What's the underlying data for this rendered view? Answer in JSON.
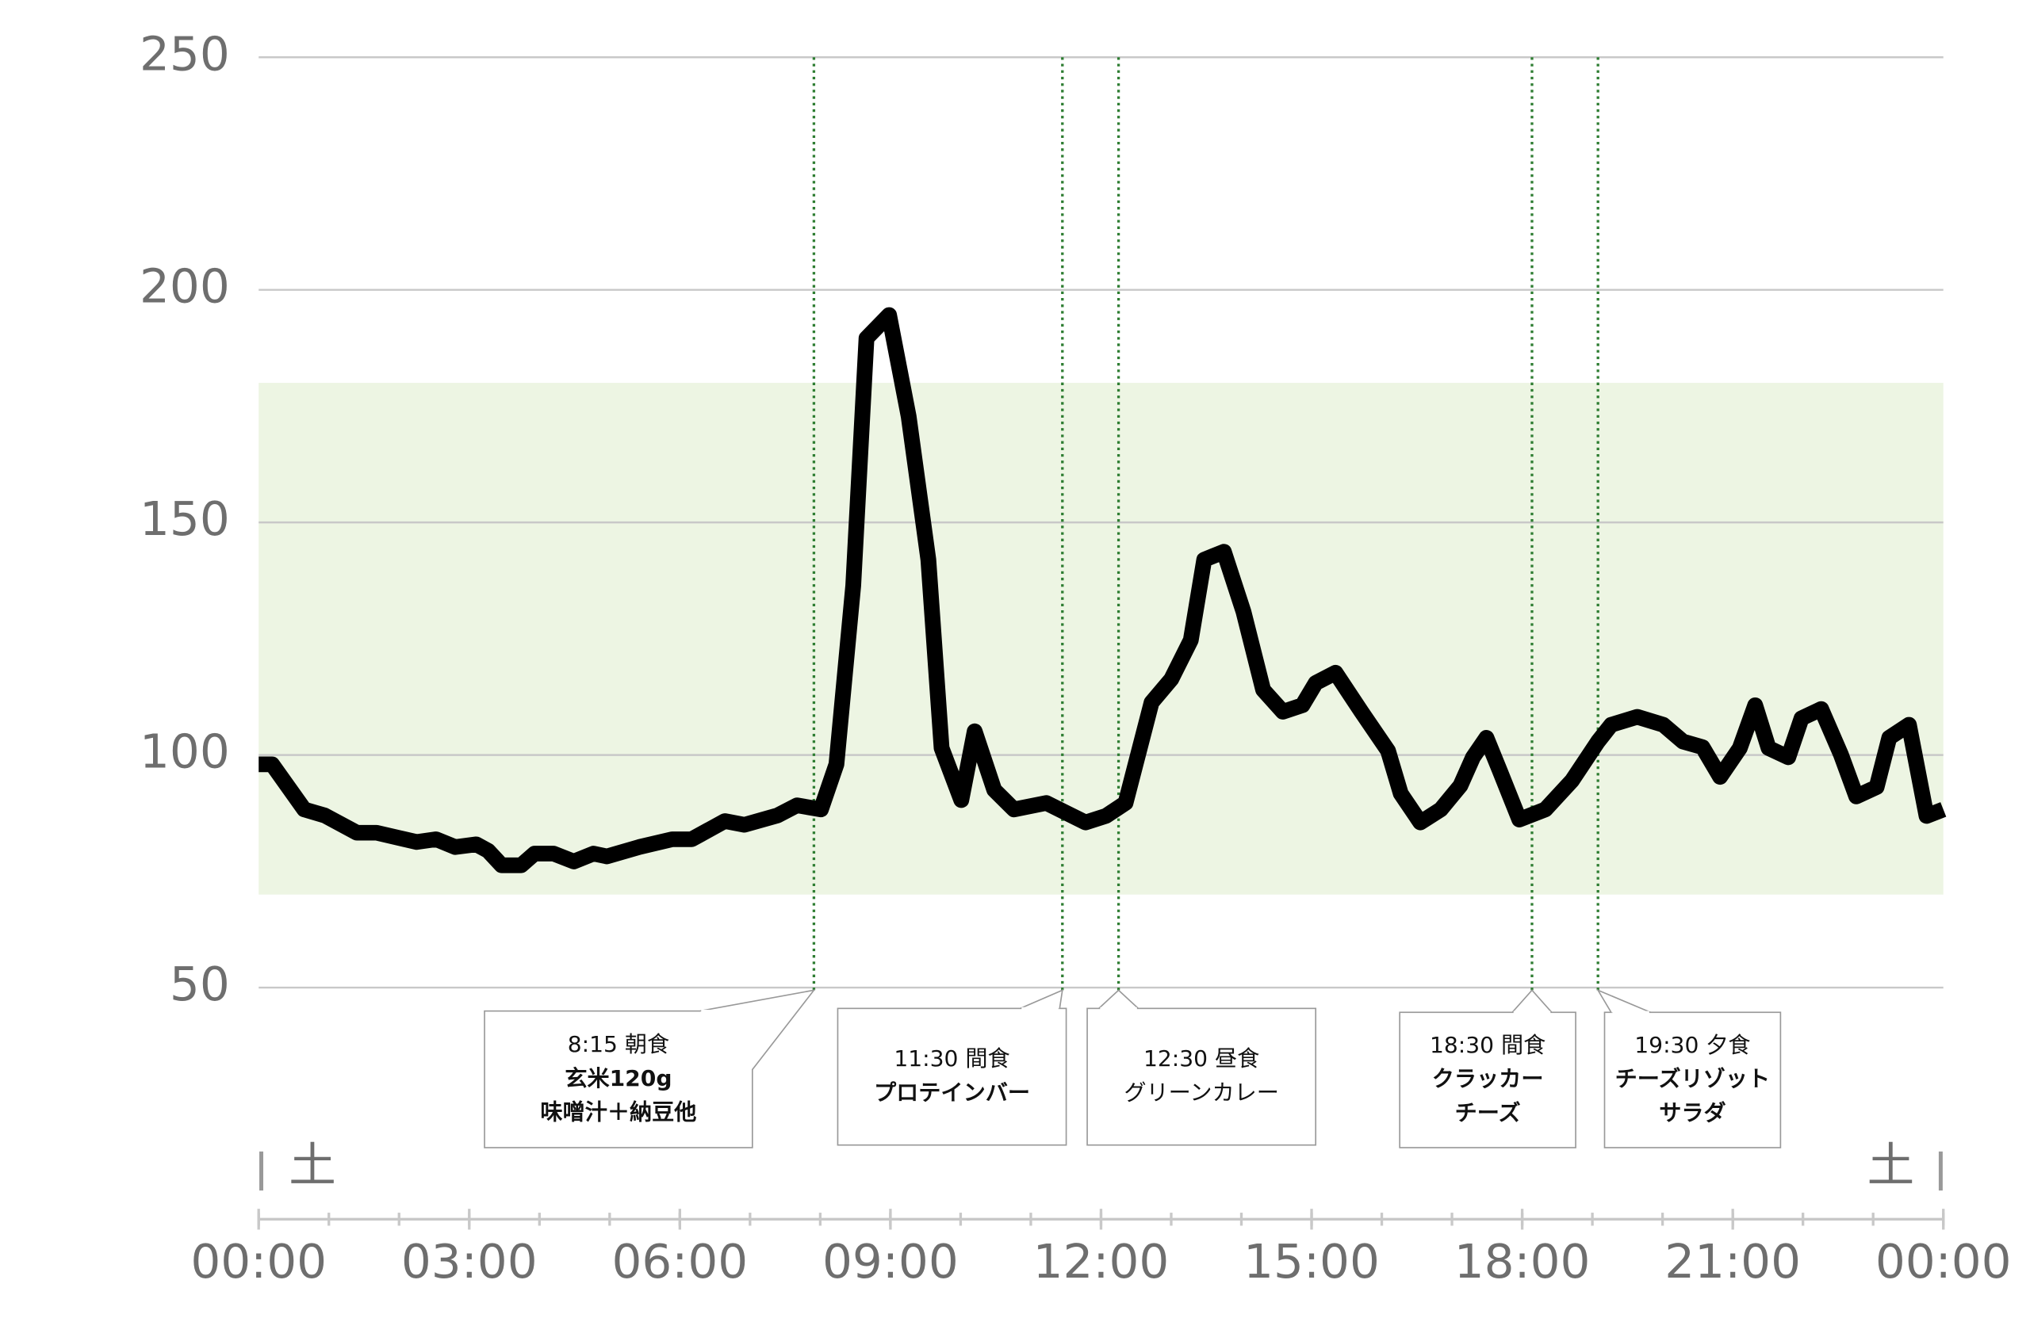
{
  "chart_data": {
    "type": "line",
    "x": [
      0,
      0.19,
      0.65,
      0.94,
      1.4,
      1.68,
      2.25,
      2.53,
      2.8,
      3.1,
      3.27,
      3.46,
      3.74,
      3.93,
      4.2,
      4.49,
      4.77,
      4.96,
      5.42,
      5.89,
      6.17,
      6.64,
      6.92,
      7.39,
      7.67,
      8.01,
      8.23,
      8.47,
      8.66,
      8.98,
      9.26,
      9.54,
      9.73,
      10.01,
      10.2,
      10.48,
      10.76,
      11.22,
      11.78,
      12.07,
      12.35,
      12.72,
      13,
      13.28,
      13.47,
      13.75,
      14.03,
      14.31,
      14.59,
      14.87,
      15.06,
      15.34,
      15.71,
      16.09,
      16.27,
      16.55,
      16.84,
      17.12,
      17.3,
      17.49,
      17.68,
      17.96,
      18.33,
      18.71,
      19.08,
      19.27,
      19.64,
      20.01,
      20.29,
      20.57,
      20.82,
      21.1,
      21.32,
      21.51,
      21.79,
      21.98,
      22.26,
      22.54,
      22.76,
      23.05,
      23.23,
      23.51,
      23.76,
      24
    ],
    "values": [
      98,
      98,
      88.3,
      87,
      83.3,
      83.3,
      81.3,
      81.9,
      80.2,
      80.8,
      79.4,
      76.3,
      76.3,
      78.8,
      78.8,
      77.1,
      78.8,
      78.2,
      80.2,
      81.9,
      81.9,
      85.8,
      85,
      87,
      89.2,
      88.3,
      98,
      136.4,
      189.6,
      194.6,
      172.8,
      142,
      101.5,
      90.3,
      105.1,
      92.5,
      88.3,
      89.7,
      85.5,
      86.9,
      89.7,
      111.3,
      116.3,
      124.7,
      142,
      143.7,
      130.8,
      114,
      109.3,
      110.7,
      115.5,
      117.7,
      109.3,
      100.9,
      91.7,
      85.5,
      88.3,
      93.4,
      99.5,
      103.7,
      96.7,
      86.1,
      88.3,
      94.5,
      102.9,
      106.5,
      108.2,
      106.5,
      102.9,
      101.7,
      95.3,
      101.5,
      110.7,
      101.5,
      99.5,
      107.9,
      109.9,
      100.1,
      91.1,
      93.1,
      103.7,
      106.5,
      86.9,
      88.3
    ],
    "color": "#000000",
    "xlim": [
      0,
      24
    ],
    "xticks": [
      {
        "value": 0,
        "label": "00:00"
      },
      {
        "value": 3,
        "label": "03:00"
      },
      {
        "value": 6,
        "label": "06:00"
      },
      {
        "value": 9,
        "label": "09:00"
      },
      {
        "value": 12,
        "label": "12:00"
      },
      {
        "value": 15,
        "label": "15:00"
      },
      {
        "value": 18,
        "label": "18:00"
      },
      {
        "value": 21,
        "label": "21:00"
      },
      {
        "value": 24,
        "label": "00:00"
      }
    ],
    "xminorticks": [
      0,
      1,
      2,
      3,
      4,
      5,
      6,
      7,
      8,
      9,
      10,
      11,
      12,
      13,
      14,
      15,
      16,
      17,
      18,
      19,
      20,
      21,
      22,
      23,
      24
    ],
    "ylim": [
      50,
      250
    ],
    "yticks": [
      50,
      100,
      150,
      200,
      250
    ],
    "grid": true,
    "target_range": [
      70,
      180
    ],
    "target_color": "#edf5e3",
    "day_labels": [
      "土",
      "土"
    ],
    "annotations": [
      {
        "x": 7.91,
        "lines": [
          "8:15 朝食",
          "玄米120g",
          "味噌汁＋納豆他"
        ]
      },
      {
        "x": 11.45,
        "lines": [
          "11:30 間食",
          "プロテインバー"
        ]
      },
      {
        "x": 12.25,
        "lines": [
          "12:30 昼食",
          "グリーンカレー"
        ]
      },
      {
        "x": 18.14,
        "lines": [
          "18:30 間食",
          "クラッカー",
          "チーズ"
        ]
      },
      {
        "x": 19.08,
        "lines": [
          "19:30 夕食",
          "チーズリゾット",
          "サラダ"
        ]
      }
    ]
  }
}
